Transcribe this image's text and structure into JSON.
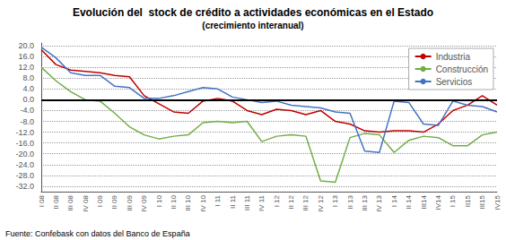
{
  "chart_data": {
    "type": "line",
    "title": "Evolución del  stock de crédito a actividades económicas en el Estado",
    "subtitle": "(crecimiento interanual)",
    "annotations": [
      "Fuente: Confebask con datos del Banco de España"
    ],
    "categories": [
      "I 08",
      "II 08",
      "III 08",
      "IV 08",
      "I 09",
      "II 09",
      "III 09",
      "IV 09",
      "I 10",
      "II 10",
      "III 10",
      "IV 10",
      "I 11",
      "II 11",
      "III 11",
      "IV 11",
      "I 12",
      "II 12",
      "III 12",
      "IV 12",
      "I 13",
      "II 13",
      "III 13",
      "IV 13",
      "I 14",
      "II 14",
      "III14",
      "IV14",
      "I 15",
      "II15",
      "III15",
      "IV15"
    ],
    "series": [
      {
        "name": "Industria",
        "color": "#c00000",
        "values": [
          18.5,
          13.0,
          11.0,
          10.5,
          10.0,
          9.0,
          8.5,
          1.5,
          -1.5,
          -4.5,
          -5.0,
          -0.5,
          0.5,
          -0.5,
          -4.0,
          -5.5,
          -3.5,
          -4.0,
          -5.5,
          -4.0,
          -8.0,
          -9.0,
          -11.5,
          -12.0,
          -11.5,
          -11.5,
          -12.0,
          -9.0,
          -4.0,
          -2.0,
          1.5,
          -2.0
        ]
      },
      {
        "name": "Construcción",
        "color": "#70ad47",
        "values": [
          12.0,
          7.0,
          3.0,
          0.0,
          -0.5,
          -5.0,
          -10.0,
          -13.0,
          -14.5,
          -13.5,
          -13.0,
          -8.5,
          -8.0,
          -8.5,
          -8.0,
          -15.5,
          -13.5,
          -13.0,
          -13.5,
          -30.0,
          -30.5,
          -14.0,
          -12.5,
          -13.0,
          -19.5,
          -15.0,
          -13.5,
          -14.0,
          -17.0,
          -17.0,
          -13.0,
          -12.0
        ]
      },
      {
        "name": "Servicios",
        "color": "#4472c4",
        "values": [
          19.5,
          15.5,
          10.0,
          9.0,
          9.0,
          5.0,
          4.5,
          0.5,
          0.5,
          1.5,
          3.0,
          4.5,
          4.0,
          1.0,
          0.0,
          -1.0,
          -0.5,
          -2.0,
          -2.5,
          -3.0,
          -4.5,
          -5.0,
          -19.0,
          -19.5,
          -0.5,
          -1.0,
          -9.0,
          -9.5,
          -0.5,
          -2.0,
          -2.5,
          -4.5
        ]
      }
    ],
    "ylim": [
      -34,
      21
    ],
    "yticks": [
      {
        "value": -32,
        "label": "-32.0"
      },
      {
        "value": -28,
        "label": "-28.0"
      },
      {
        "value": -24,
        "label": "-24.0"
      },
      {
        "value": -20,
        "label": "-20.0"
      },
      {
        "value": -16,
        "label": "-16.0"
      },
      {
        "value": -12,
        "label": "-12.0"
      },
      {
        "value": -8,
        "label": "-8.0"
      },
      {
        "value": -4,
        "label": "-4.0"
      },
      {
        "value": 0,
        "label": "0.0"
      },
      {
        "value": 4,
        "label": "4.0"
      },
      {
        "value": 8,
        "label": "8.0"
      },
      {
        "value": 12,
        "label": "12.0"
      },
      {
        "value": 16,
        "label": "16.0"
      },
      {
        "value": 20,
        "label": "20.0"
      }
    ],
    "grid": true,
    "legend": "upper right"
  }
}
